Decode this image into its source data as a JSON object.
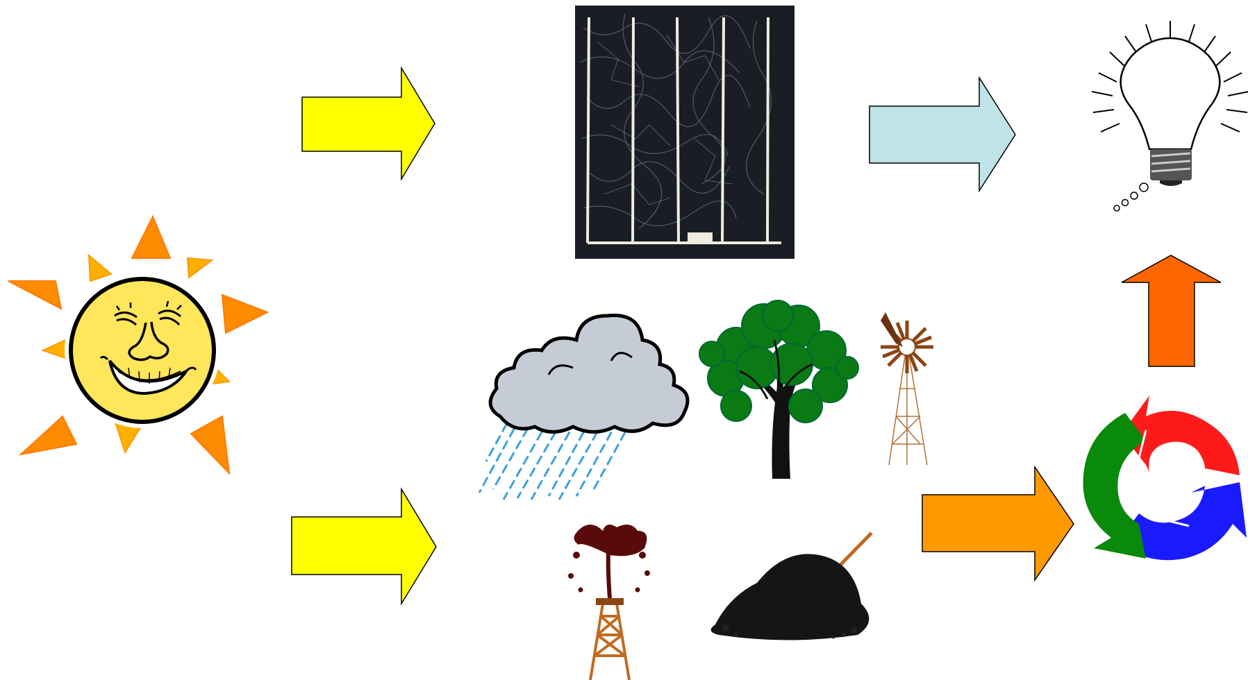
{
  "diagram": {
    "nodes": [
      {
        "id": "sun",
        "icon": "sun-icon"
      },
      {
        "id": "solar_cell",
        "icon": "solar-cell-icon"
      },
      {
        "id": "light_bulb",
        "icon": "light-bulb-icon"
      },
      {
        "id": "rain_cloud",
        "icon": "rain-cloud-icon"
      },
      {
        "id": "tree",
        "icon": "tree-icon"
      },
      {
        "id": "windmill",
        "icon": "windmill-icon"
      },
      {
        "id": "oil_gusher",
        "icon": "oil-derrick-icon"
      },
      {
        "id": "coal_pile",
        "icon": "coal-pile-icon"
      },
      {
        "id": "recycle",
        "icon": "recycle-arrows-icon"
      }
    ],
    "arrows": [
      {
        "id": "sun_to_solar_cell",
        "color": "#ffff00"
      },
      {
        "id": "sun_to_natural_sources",
        "color": "#ffff00"
      },
      {
        "id": "solar_cell_to_bulb",
        "color": "#bfe3e6"
      },
      {
        "id": "natural_sources_to_conversion",
        "color": "#ff9900"
      },
      {
        "id": "conversion_to_bulb",
        "color": "#ff6600"
      }
    ],
    "colors": {
      "sun_ray": "#ff8c00",
      "sun_face": "#ffe65a",
      "recycle_green": "#0a8a0a",
      "recycle_red": "#ff1a1a",
      "recycle_blue": "#1a1aff",
      "tree_green": "#0a7a14",
      "cloud_grey": "#c5ccd5",
      "rain_blue": "#3aa0e0",
      "oil": "#5a0a0a",
      "derrick": "#c06a20",
      "coal": "#151515"
    }
  }
}
